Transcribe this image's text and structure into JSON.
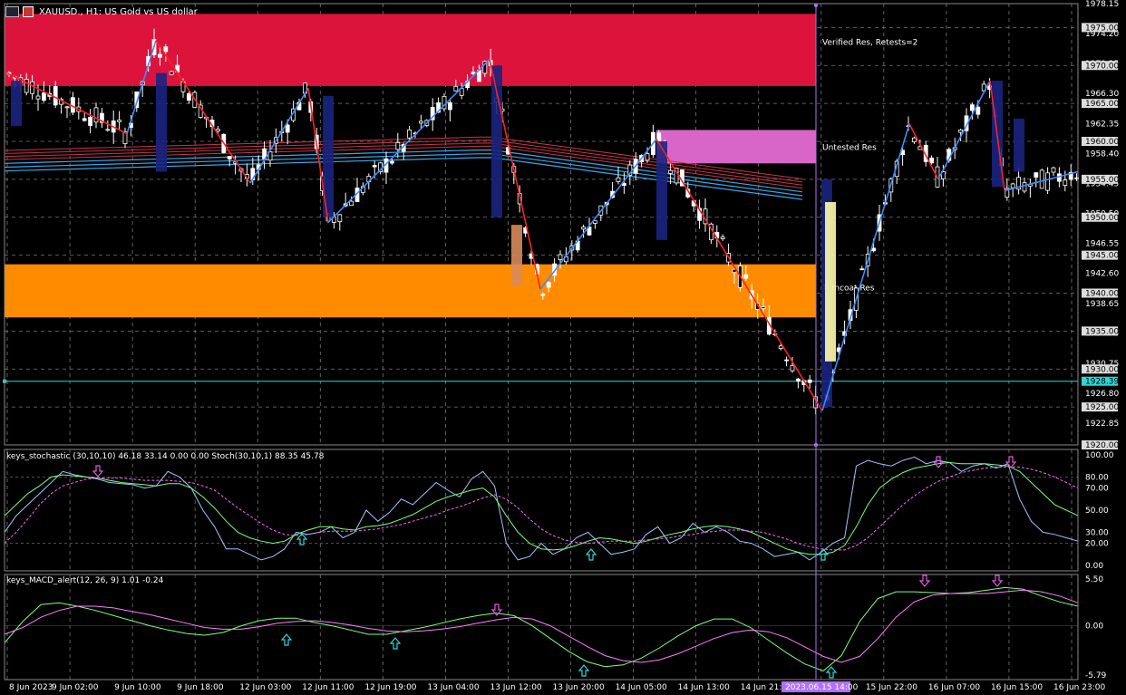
{
  "window": {
    "title": "XAUUSD., H1:  US Gold vs US dollar"
  },
  "colors": {
    "bg": "#000000",
    "bull_candle": "#ffffff",
    "bear_candle": "#0a1a66",
    "zigzag_up": "#3d8cff",
    "zigzag_down": "#ff2020",
    "resistance_zone": "#dc143c",
    "support_zone": "#ff8c00",
    "untested_zone": "#d866c8",
    "ma_red": "#c8344a",
    "ma_blue": "#39a6e8",
    "current_line": "#2fd6d6",
    "stoch_main": "#9ec5ff",
    "stoch_signal": "#ff66ff",
    "macd_main": "#7cff7c",
    "macd_signal": "#ff7cff",
    "arrow_up": "#2fd6d6",
    "arrow_down": "#e05ad8"
  },
  "zones": [
    {
      "label": "Verified Res, Retests=2",
      "from": 1967.3,
      "to": 1976.8,
      "color": "#dc143c"
    },
    {
      "label": "Untested Res",
      "from": 1957.1,
      "to": 1961.5,
      "color": "#d866c8"
    },
    {
      "label": "Turncoat Res",
      "from": 1936.8,
      "to": 1943.8,
      "color": "#ff8c00"
    }
  ],
  "price_axis": {
    "ticks": [
      "1978.15",
      "1974.20",
      "1970.25",
      "1966.30",
      "1962.35",
      "1958.40",
      "1954.45",
      "1950.50",
      "1946.55",
      "1942.60",
      "1938.65",
      "1934.75",
      "1930.75",
      "1926.80",
      "1922.85"
    ],
    "highlighted": [
      "1975.00",
      "1970.00",
      "1965.00",
      "1960.00",
      "1955.00",
      "1950.00",
      "1945.00",
      "1940.00",
      "1935.00",
      "1930.00",
      "1925.00",
      "1920.00"
    ],
    "current_price": "1928.39"
  },
  "time_axis": [
    "8 Jun 2023",
    "9 Jun 02:00",
    "9 Jun 10:00",
    "9 Jun 18:00",
    "12 Jun 03:00",
    "12 Jun 11:00",
    "12 Jun 19:00",
    "13 Jun 04:00",
    "13 Jun 12:00",
    "13 Jun 20:00",
    "14 Jun 05:00",
    "14 Jun 13:00",
    "14 Jun 21:00",
    "15 Jun",
    "15 Jun 22:00",
    "16 Jun 07:00",
    "16 Jun 15:00",
    "16 Jun 23:00"
  ],
  "time_cursor": "2023.06.15 14:00",
  "stoch": {
    "label": "keys_stochastic (30,10,10) 46.18 33.14 0.00 0.00 Stoch(30,10,1) 88.35 45.78",
    "ticks": [
      "100.00",
      "80.00",
      "70.00",
      "50.00",
      "30.00",
      "20.00",
      "0.00"
    ]
  },
  "macd": {
    "label": "keys_MACD_alert(12, 26, 9) 1.01 -0.24",
    "ticks": [
      "5.50",
      "0.00",
      "-5.79"
    ]
  },
  "chart_data": [
    {
      "type": "candlestick",
      "title": "XAUUSD., H1:  US Gold vs US dollar",
      "ylim": [
        1920.0,
        1978.15
      ],
      "zigzag": [
        {
          "t": "8 Jun 2023",
          "price": 1969.0
        },
        {
          "t": "9 Jun 09:00",
          "price": 1961.0
        },
        {
          "t": "9 Jun 10:00",
          "price": 1973.3
        },
        {
          "t": "12 Jun 01:00",
          "price": 1954.5
        },
        {
          "t": "12 Jun 09:00",
          "price": 1967.0
        },
        {
          "t": "12 Jun 12:00",
          "price": 1949.3
        },
        {
          "t": "13 Jun 11:00",
          "price": 1970.8
        },
        {
          "t": "13 Jun 19:00",
          "price": 1940.5
        },
        {
          "t": "14 Jun 13:00",
          "price": 1960.3
        },
        {
          "t": "15 Jun 14:00",
          "price": 1924.5
        },
        {
          "t": "15 Jun 23:00",
          "price": 1962.3
        },
        {
          "t": "16 Jun 04:00",
          "price": 1955.0
        },
        {
          "t": "16 Jun 10:00",
          "price": 1968.0
        },
        {
          "t": "16 Jun 12:00",
          "price": 1953.5
        },
        {
          "t": "16 Jun 23:00",
          "price": 1956.0
        }
      ]
    },
    {
      "type": "line",
      "title": "keys_stochastic (30,10,10)",
      "ylim": [
        0,
        100
      ],
      "series": [
        {
          "name": "Stoch(30,10,1)",
          "values": [
            30,
            45,
            55,
            65,
            75,
            85,
            82,
            80,
            78,
            75,
            74,
            73,
            70,
            72,
            85,
            80,
            70,
            50,
            35,
            15,
            15,
            10,
            5,
            8,
            15,
            30,
            28,
            30,
            35,
            25,
            30,
            50,
            40,
            48,
            60,
            55,
            65,
            75,
            68,
            62,
            78,
            85,
            72,
            20,
            5,
            8,
            20,
            10,
            15,
            25,
            30,
            20,
            10,
            12,
            15,
            28,
            35,
            20,
            25,
            38,
            30,
            35,
            30,
            22,
            20,
            15,
            8,
            10,
            12,
            5,
            12,
            20,
            25,
            90,
            95,
            92,
            90,
            95,
            98,
            92,
            95,
            93,
            85,
            90,
            92,
            88,
            92,
            60,
            40,
            30,
            28,
            25,
            22
          ]
        },
        {
          "values": [
            45,
            55,
            65,
            72,
            80,
            82,
            81,
            80,
            79,
            77,
            75,
            74,
            73,
            72,
            74,
            74,
            70,
            62,
            52,
            40,
            30,
            25,
            22,
            20,
            22,
            28,
            32,
            35,
            35,
            33,
            32,
            35,
            36,
            38,
            42,
            46,
            52,
            58,
            62,
            65,
            68,
            70,
            62,
            45,
            30,
            20,
            15,
            14,
            15,
            18,
            22,
            25,
            24,
            22,
            20,
            22,
            25,
            28,
            30,
            33,
            35,
            36,
            35,
            33,
            30,
            25,
            20,
            15,
            12,
            10,
            10,
            12,
            18,
            35,
            55,
            70,
            78,
            84,
            88,
            90,
            92,
            93,
            92,
            92,
            92,
            91,
            90,
            85,
            75,
            65,
            55,
            50,
            45
          ]
        },
        {
          "values": [
            20,
            30,
            42,
            55,
            65,
            72,
            75,
            78,
            79,
            79,
            79,
            78,
            77,
            77,
            77,
            76,
            75,
            72,
            68,
            60,
            52,
            45,
            38,
            32,
            28,
            27,
            28,
            30,
            31,
            31,
            31,
            32,
            33,
            35,
            37,
            40,
            43,
            46,
            50,
            53,
            57,
            61,
            64,
            60,
            52,
            42,
            33,
            27,
            23,
            21,
            20,
            21,
            22,
            22,
            22,
            23,
            24,
            25,
            27,
            28,
            30,
            31,
            32,
            32,
            31,
            30,
            27,
            24,
            20,
            17,
            15,
            14,
            14,
            18,
            25,
            35,
            45,
            55,
            63,
            70,
            76,
            80,
            84,
            86,
            88,
            89,
            89,
            89,
            87,
            84,
            80,
            75,
            70
          ]
        }
      ]
    },
    {
      "type": "line",
      "title": "keys_MACD_alert(12, 26, 9)",
      "ylim": [
        -5.79,
        5.5
      ],
      "series": [
        {
          "values": [
            -2.0,
            0.5,
            2.5,
            2.7,
            2.3,
            1.8,
            1.2,
            0.6,
            0.0,
            -0.5,
            -0.9,
            -1.1,
            -0.8,
            0.0,
            0.6,
            0.9,
            0.9,
            0.4,
            0.0,
            -0.5,
            -1.0,
            -1.0,
            -0.6,
            -0.2,
            0.3,
            0.8,
            1.2,
            1.5,
            1.2,
            0.0,
            -1.5,
            -3.0,
            -4.2,
            -4.8,
            -4.6,
            -3.8,
            -2.6,
            -1.2,
            0.0,
            0.8,
            0.8,
            -0.2,
            -1.7,
            -3.2,
            -4.5,
            -5.3,
            -3.5,
            0.5,
            3.2,
            4.0,
            4.0,
            3.9,
            3.8,
            3.9,
            4.2,
            4.5,
            4.3,
            3.5,
            2.8,
            2.3
          ]
        },
        {
          "values": [
            -1.0,
            -0.2,
            1.0,
            1.8,
            2.3,
            2.3,
            2.1,
            1.7,
            1.3,
            0.8,
            0.3,
            -0.2,
            -0.4,
            -0.4,
            -0.1,
            0.3,
            0.5,
            0.6,
            0.4,
            0.1,
            -0.3,
            -0.6,
            -0.7,
            -0.6,
            -0.4,
            -0.1,
            0.3,
            0.7,
            1.0,
            0.8,
            0.0,
            -1.2,
            -2.4,
            -3.5,
            -4.1,
            -4.3,
            -4.0,
            -3.3,
            -2.4,
            -1.5,
            -0.8,
            -0.5,
            -0.7,
            -1.4,
            -2.5,
            -3.6,
            -4.3,
            -3.6,
            -1.5,
            1.0,
            2.8,
            3.6,
            3.8,
            3.8,
            3.8,
            4.0,
            4.2,
            4.0,
            3.5,
            2.7
          ]
        }
      ]
    }
  ]
}
